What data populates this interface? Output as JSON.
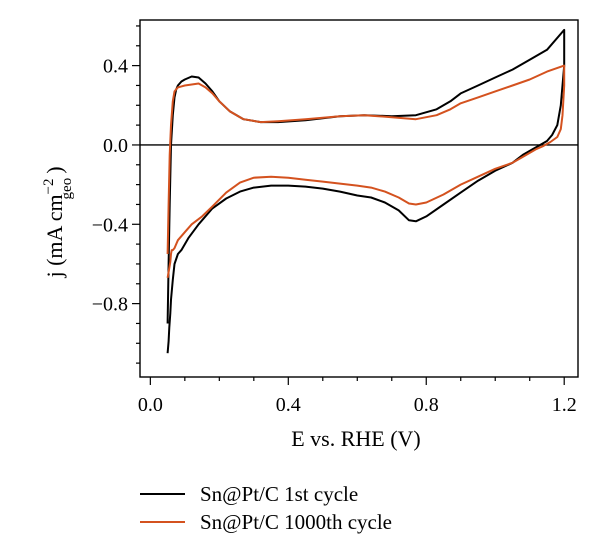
{
  "chart_data": {
    "type": "line",
    "xlabel": "E vs. RHE (V)",
    "ylabel": {
      "prefix": "j (mA cm",
      "sup": "−2",
      "sub": "geo",
      "suffix": ")"
    },
    "xlim": [
      -0.03,
      1.24
    ],
    "ylim": [
      -1.17,
      0.63
    ],
    "xticks": [
      0.0,
      0.4,
      0.8,
      1.2
    ],
    "xtick_labels": [
      "0.0",
      "0.4",
      "0.8",
      "1.2"
    ],
    "yticks": [
      -0.8,
      -0.4,
      0.0,
      0.4
    ],
    "ytick_labels": [
      "−0.8",
      "−0.4",
      "0.0",
      "0.4"
    ],
    "zero_line": 0,
    "grid": false,
    "legend_position": "below plot",
    "series": [
      {
        "name": "Sn@Pt/C 1st cycle",
        "color": "#000000",
        "x": [
          0.05,
          0.053,
          0.056,
          0.06,
          0.065,
          0.07,
          0.075,
          0.08,
          0.09,
          0.1,
          0.12,
          0.14,
          0.16,
          0.18,
          0.2,
          0.23,
          0.27,
          0.32,
          0.37,
          0.45,
          0.55,
          0.62,
          0.7,
          0.77,
          0.83,
          0.87,
          0.9,
          0.95,
          1.0,
          1.05,
          1.1,
          1.15,
          1.2,
          1.2,
          1.19,
          1.18,
          1.165,
          1.15,
          1.13,
          1.11,
          1.08,
          1.05,
          1.0,
          0.95,
          0.9,
          0.85,
          0.8,
          0.77,
          0.75,
          0.72,
          0.68,
          0.64,
          0.6,
          0.55,
          0.5,
          0.45,
          0.4,
          0.35,
          0.3,
          0.26,
          0.22,
          0.18,
          0.14,
          0.11,
          0.09,
          0.08,
          0.07,
          0.065,
          0.06,
          0.058,
          0.055,
          0.053,
          0.05
        ],
        "y": [
          -0.9,
          -0.6,
          -0.3,
          0.0,
          0.15,
          0.24,
          0.28,
          0.3,
          0.32,
          0.33,
          0.345,
          0.34,
          0.31,
          0.27,
          0.22,
          0.17,
          0.13,
          0.115,
          0.115,
          0.125,
          0.145,
          0.15,
          0.145,
          0.15,
          0.18,
          0.22,
          0.26,
          0.3,
          0.34,
          0.38,
          0.43,
          0.48,
          0.58,
          0.4,
          0.2,
          0.1,
          0.05,
          0.02,
          0.0,
          -0.02,
          -0.05,
          -0.09,
          -0.13,
          -0.18,
          -0.24,
          -0.3,
          -0.36,
          -0.385,
          -0.38,
          -0.33,
          -0.29,
          -0.265,
          -0.255,
          -0.235,
          -0.22,
          -0.21,
          -0.205,
          -0.205,
          -0.215,
          -0.235,
          -0.27,
          -0.32,
          -0.4,
          -0.47,
          -0.53,
          -0.55,
          -0.6,
          -0.68,
          -0.78,
          -0.85,
          -0.92,
          -0.99,
          -1.05
        ]
      },
      {
        "name": "Sn@Pt/C 1000th cycle",
        "color": "#d4521f",
        "x": [
          0.05,
          0.053,
          0.056,
          0.06,
          0.065,
          0.07,
          0.08,
          0.09,
          0.1,
          0.12,
          0.14,
          0.16,
          0.18,
          0.2,
          0.23,
          0.27,
          0.32,
          0.37,
          0.45,
          0.55,
          0.62,
          0.7,
          0.77,
          0.83,
          0.87,
          0.9,
          0.95,
          1.0,
          1.05,
          1.1,
          1.15,
          1.2,
          1.2,
          1.195,
          1.19,
          1.18,
          1.16,
          1.14,
          1.12,
          1.1,
          1.08,
          1.05,
          1.0,
          0.95,
          0.9,
          0.85,
          0.8,
          0.77,
          0.75,
          0.72,
          0.68,
          0.64,
          0.6,
          0.55,
          0.5,
          0.45,
          0.4,
          0.35,
          0.3,
          0.26,
          0.22,
          0.18,
          0.15,
          0.12,
          0.1,
          0.08,
          0.07,
          0.065,
          0.062,
          0.06,
          0.058,
          0.055,
          0.052,
          0.05
        ],
        "y": [
          -0.55,
          -0.3,
          -0.05,
          0.1,
          0.22,
          0.27,
          0.29,
          0.295,
          0.3,
          0.305,
          0.31,
          0.29,
          0.26,
          0.22,
          0.17,
          0.13,
          0.115,
          0.12,
          0.13,
          0.145,
          0.15,
          0.14,
          0.13,
          0.15,
          0.18,
          0.21,
          0.24,
          0.27,
          0.3,
          0.33,
          0.37,
          0.4,
          0.3,
          0.15,
          0.08,
          0.04,
          0.015,
          -0.005,
          -0.02,
          -0.04,
          -0.06,
          -0.09,
          -0.12,
          -0.16,
          -0.2,
          -0.25,
          -0.29,
          -0.3,
          -0.295,
          -0.265,
          -0.235,
          -0.215,
          -0.205,
          -0.195,
          -0.185,
          -0.175,
          -0.165,
          -0.16,
          -0.165,
          -0.19,
          -0.24,
          -0.31,
          -0.36,
          -0.4,
          -0.44,
          -0.48,
          -0.52,
          -0.53,
          -0.53,
          -0.55,
          -0.59,
          -0.62,
          -0.65,
          -0.67
        ]
      }
    ]
  }
}
